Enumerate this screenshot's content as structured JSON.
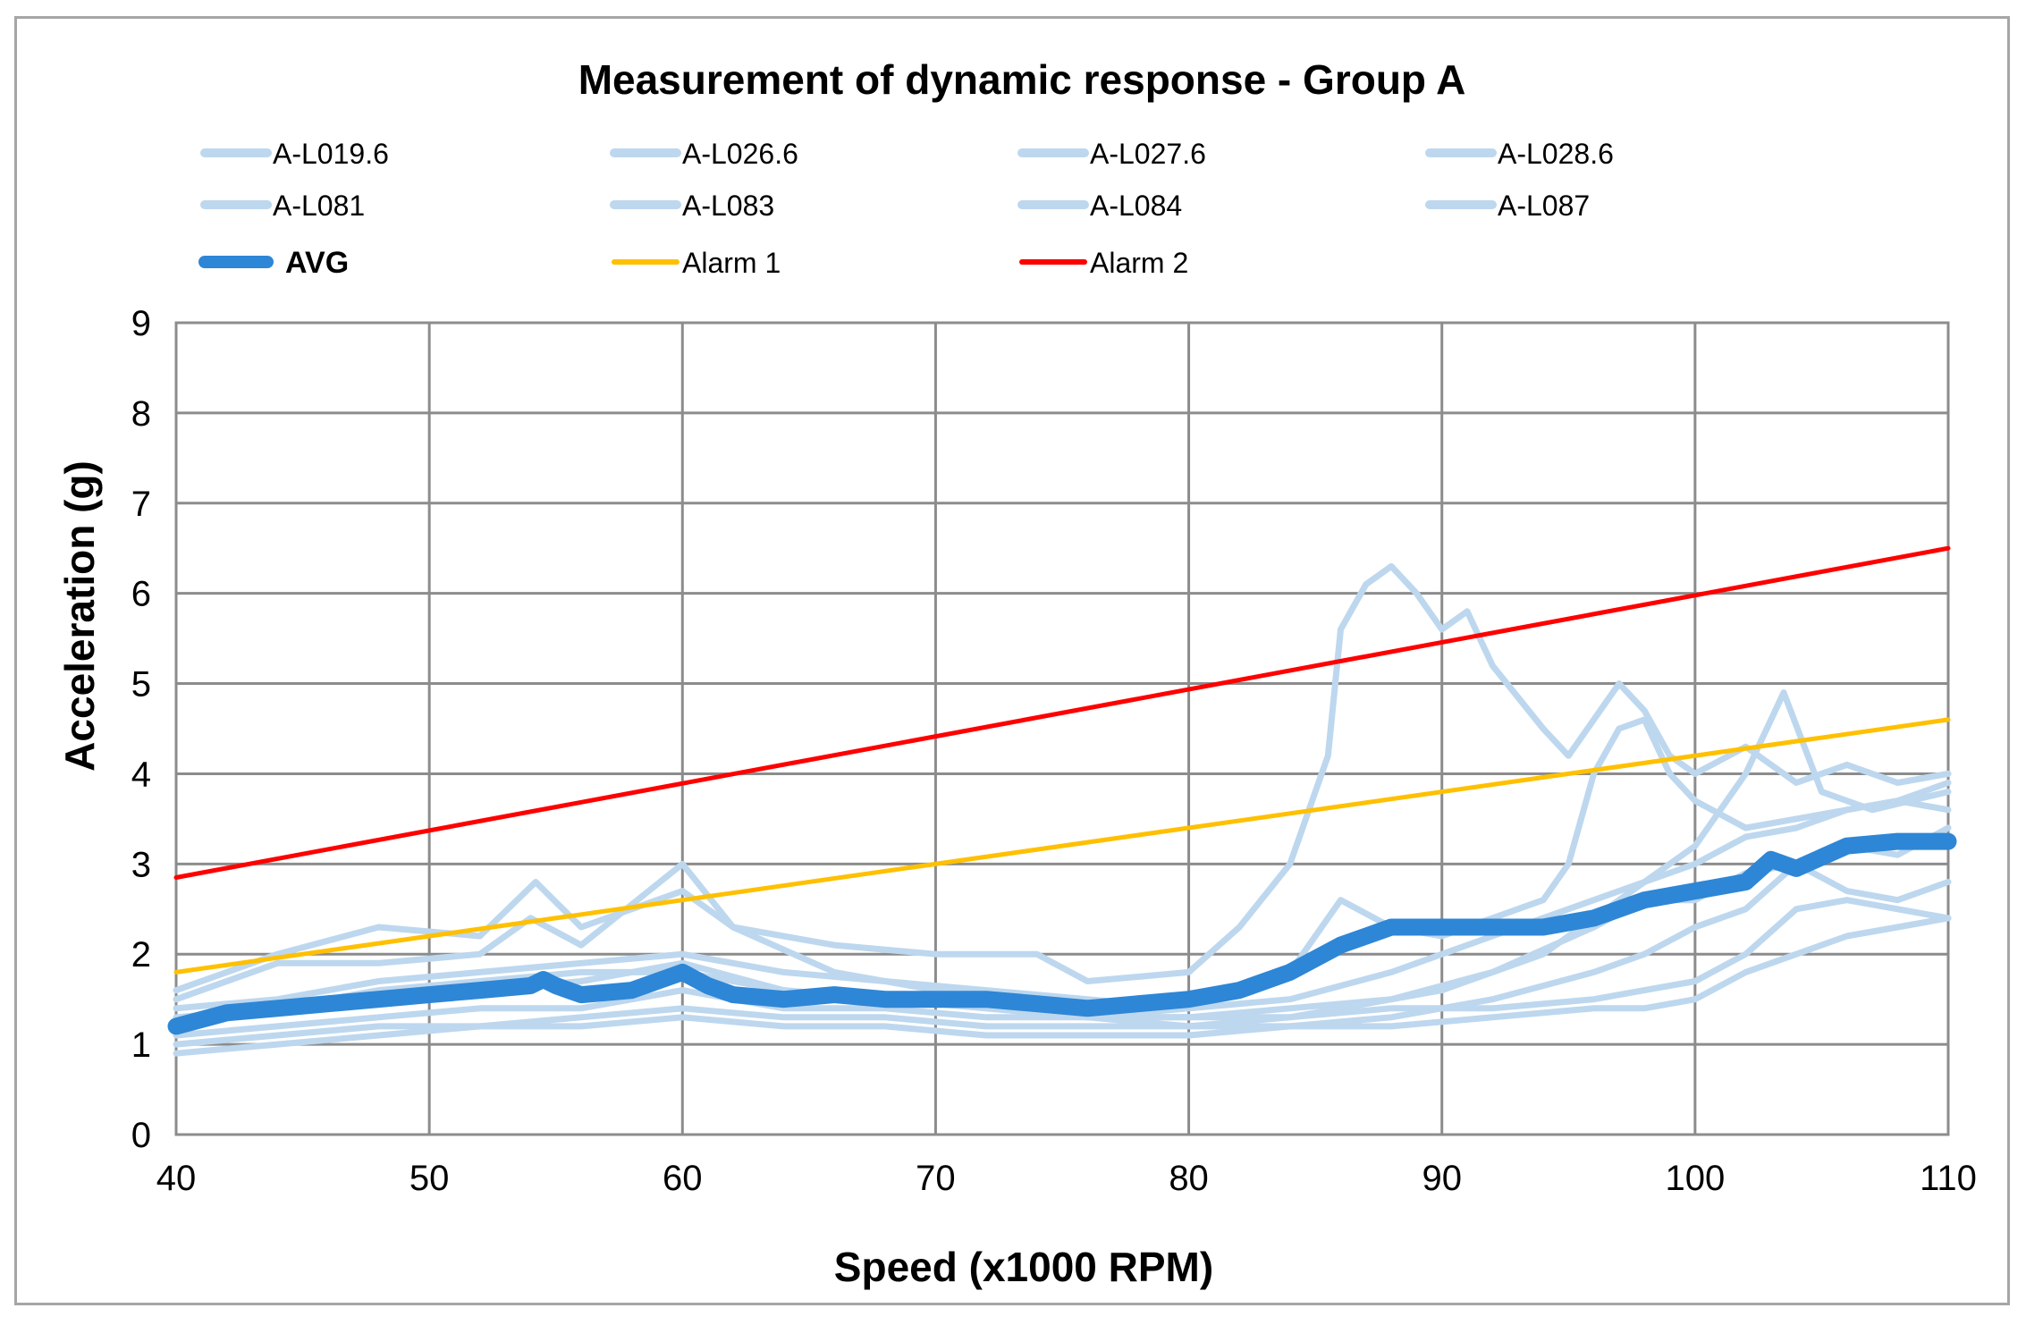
{
  "chart_data": {
    "type": "line",
    "title": "Measurement of dynamic response - Group A",
    "xlabel": "Speed (x1000 RPM)",
    "ylabel": "Acceleration (g)",
    "xlim": [
      40,
      110
    ],
    "ylim": [
      0,
      9
    ],
    "xticks": [
      40,
      50,
      60,
      70,
      80,
      90,
      100,
      110
    ],
    "yticks": [
      0,
      1,
      2,
      3,
      4,
      5,
      6,
      7,
      8,
      9
    ],
    "grid": true,
    "legend_position": "top",
    "series": [
      {
        "name": "A-L019.6",
        "color": "#bdd7ee",
        "width": "thin",
        "x": [
          40,
          44,
          48,
          52,
          54.2,
          56,
          60,
          62,
          66,
          70,
          74,
          76,
          80,
          82,
          84,
          85.5,
          86,
          87,
          88,
          89,
          90,
          91,
          92,
          94,
          95,
          96,
          97,
          98,
          99,
          100,
          102,
          104,
          106,
          108,
          110
        ],
        "y": [
          1.6,
          2.0,
          2.3,
          2.2,
          2.8,
          2.3,
          2.7,
          2.3,
          2.1,
          2.0,
          2.0,
          1.7,
          1.8,
          2.3,
          3.0,
          4.2,
          5.6,
          6.1,
          6.3,
          6.0,
          5.6,
          5.8,
          5.2,
          4.5,
          4.2,
          4.6,
          5.0,
          4.7,
          4.2,
          4.0,
          4.3,
          3.9,
          4.1,
          3.9,
          4.0
        ]
      },
      {
        "name": "A-L026.6",
        "color": "#bdd7ee",
        "width": "thin",
        "x": [
          40,
          44,
          48,
          52,
          54,
          56,
          60,
          62,
          66,
          70,
          74,
          76,
          80,
          84,
          88,
          90,
          92,
          94,
          96,
          98,
          100,
          102,
          103.5,
          105,
          107,
          110
        ],
        "y": [
          1.5,
          1.9,
          1.9,
          2.0,
          2.4,
          2.1,
          3.0,
          2.3,
          1.8,
          1.6,
          1.4,
          1.3,
          1.3,
          1.4,
          1.5,
          1.6,
          1.8,
          2.0,
          2.4,
          2.8,
          3.2,
          4.0,
          4.9,
          3.8,
          3.6,
          3.8
        ]
      },
      {
        "name": "A-L027.6",
        "color": "#bdd7ee",
        "width": "thin",
        "x": [
          40,
          44,
          48,
          52,
          56,
          60,
          64,
          68,
          72,
          76,
          80,
          84,
          86,
          88,
          90,
          92,
          94,
          95,
          96,
          97,
          98,
          99,
          100,
          102,
          104,
          106,
          108,
          110
        ],
        "y": [
          1.2,
          1.4,
          1.5,
          1.6,
          1.7,
          1.9,
          1.6,
          1.5,
          1.4,
          1.3,
          1.4,
          1.8,
          2.6,
          2.3,
          2.2,
          2.4,
          2.6,
          3.0,
          4.0,
          4.5,
          4.6,
          4.0,
          3.7,
          3.4,
          3.5,
          3.6,
          3.7,
          3.6
        ]
      },
      {
        "name": "A-L028.6",
        "color": "#bdd7ee",
        "width": "thin",
        "x": [
          40,
          44,
          48,
          52,
          56,
          60,
          64,
          68,
          72,
          76,
          80,
          84,
          88,
          92,
          96,
          98,
          100,
          102,
          104,
          106,
          108,
          110
        ],
        "y": [
          1.0,
          1.1,
          1.2,
          1.2,
          1.3,
          1.4,
          1.3,
          1.3,
          1.2,
          1.2,
          1.2,
          1.3,
          1.5,
          1.8,
          2.3,
          2.6,
          2.6,
          2.9,
          3.0,
          3.2,
          3.1,
          3.4
        ]
      },
      {
        "name": "A-L081",
        "color": "#bdd7ee",
        "width": "thin",
        "x": [
          40,
          44,
          48,
          52,
          56,
          60,
          64,
          68,
          72,
          76,
          80,
          84,
          88,
          92,
          96,
          98,
          100,
          102,
          104,
          106,
          108,
          110
        ],
        "y": [
          0.9,
          1.0,
          1.1,
          1.2,
          1.2,
          1.3,
          1.2,
          1.2,
          1.1,
          1.1,
          1.1,
          1.2,
          1.3,
          1.5,
          1.8,
          2.0,
          2.3,
          2.5,
          3.0,
          2.7,
          2.6,
          2.8
        ]
      },
      {
        "name": "A-L083",
        "color": "#bdd7ee",
        "width": "thin",
        "x": [
          40,
          44,
          48,
          52,
          56,
          60,
          64,
          68,
          72,
          76,
          80,
          84,
          88,
          92,
          96,
          98,
          100,
          102,
          104,
          106,
          108,
          110
        ],
        "y": [
          1.1,
          1.2,
          1.3,
          1.4,
          1.4,
          1.6,
          1.4,
          1.4,
          1.3,
          1.3,
          1.3,
          1.3,
          1.4,
          1.4,
          1.5,
          1.6,
          1.7,
          2.0,
          2.5,
          2.6,
          2.5,
          2.4
        ]
      },
      {
        "name": "A-L084",
        "color": "#bdd7ee",
        "width": "thin",
        "x": [
          40,
          44,
          48,
          52,
          56,
          60,
          64,
          68,
          72,
          76,
          80,
          84,
          88,
          92,
          96,
          98,
          100,
          102,
          104,
          106,
          108,
          110
        ],
        "y": [
          1.3,
          1.4,
          1.6,
          1.7,
          1.8,
          1.8,
          1.6,
          1.5,
          1.4,
          1.3,
          1.2,
          1.2,
          1.2,
          1.3,
          1.4,
          1.4,
          1.5,
          1.8,
          2.0,
          2.2,
          2.3,
          2.4
        ]
      },
      {
        "name": "A-L087",
        "color": "#bdd7ee",
        "width": "thin",
        "x": [
          40,
          44,
          48,
          52,
          56,
          60,
          64,
          68,
          72,
          76,
          80,
          84,
          88,
          92,
          96,
          98,
          100,
          102,
          104,
          106,
          108,
          110
        ],
        "y": [
          1.4,
          1.5,
          1.7,
          1.8,
          1.9,
          2.0,
          1.8,
          1.7,
          1.6,
          1.5,
          1.4,
          1.5,
          1.8,
          2.2,
          2.6,
          2.8,
          3.0,
          3.3,
          3.4,
          3.6,
          3.7,
          3.9
        ]
      },
      {
        "name": "AVG",
        "color": "#2e86d6",
        "width": "thick",
        "x": [
          40,
          42,
          44,
          46,
          48,
          50,
          52,
          54,
          54.5,
          55,
          56,
          58,
          60,
          61,
          62,
          64,
          66,
          68,
          70,
          72,
          74,
          76,
          78,
          80,
          82,
          84,
          86,
          88,
          90,
          92,
          94,
          96,
          98,
          100,
          102,
          103,
          104,
          106,
          108,
          110
        ],
        "y": [
          1.2,
          1.35,
          1.4,
          1.45,
          1.5,
          1.55,
          1.6,
          1.65,
          1.72,
          1.65,
          1.55,
          1.6,
          1.8,
          1.65,
          1.55,
          1.5,
          1.55,
          1.5,
          1.5,
          1.5,
          1.45,
          1.4,
          1.45,
          1.5,
          1.6,
          1.8,
          2.1,
          2.3,
          2.3,
          2.3,
          2.3,
          2.4,
          2.6,
          2.7,
          2.8,
          3.05,
          2.95,
          3.2,
          3.25,
          3.25
        ]
      },
      {
        "name": "Alarm 1",
        "color": "#ffc000",
        "width": "normal",
        "x": [
          40,
          110
        ],
        "y": [
          1.8,
          4.6
        ]
      },
      {
        "name": "Alarm 2",
        "color": "#ff0000",
        "width": "normal",
        "x": [
          40,
          110
        ],
        "y": [
          2.85,
          6.5
        ]
      }
    ]
  }
}
